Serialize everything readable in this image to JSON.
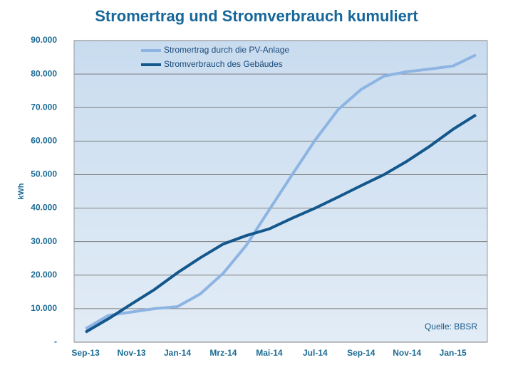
{
  "chart_data": {
    "type": "line",
    "title": "Stromertrag und Stromverbrauch kumuliert",
    "y_label": "kWh",
    "annotation": "Quelle: BBSR",
    "categories": [
      "Sep-13",
      null,
      "Nov-13",
      null,
      "Jan-14",
      null,
      "Mrz-14",
      null,
      "Mai-14",
      null,
      "Jul-14",
      null,
      "Sep-14",
      null,
      "Nov-14",
      null,
      "Jan-15",
      null
    ],
    "series": [
      {
        "name": "Stromertrag durch die PV-Anlage",
        "color": "#8db4e2",
        "values": [
          4000,
          8000,
          9000,
          10000,
          10600,
          14400,
          20600,
          28900,
          39500,
          50000,
          60300,
          69400,
          75400,
          79400,
          80700,
          81500,
          82400,
          85700
        ]
      },
      {
        "name": "Stromverbrauch des Gebäudes",
        "color": "#13578c",
        "values": [
          3000,
          7000,
          11400,
          15700,
          20700,
          25200,
          29300,
          31800,
          33800,
          37000,
          40000,
          43300,
          46700,
          50000,
          54000,
          58500,
          63500,
          67800
        ]
      }
    ],
    "ylim": [
      0,
      90000
    ],
    "yticks": [
      {
        "value": 0,
        "label": "-"
      },
      {
        "value": 10000,
        "label": "10.000"
      },
      {
        "value": 20000,
        "label": "20.000"
      },
      {
        "value": 30000,
        "label": "30.000"
      },
      {
        "value": 40000,
        "label": "40.000"
      },
      {
        "value": 50000,
        "label": "50.000"
      },
      {
        "value": 60000,
        "label": "60.000"
      },
      {
        "value": 70000,
        "label": "70.000"
      },
      {
        "value": 80000,
        "label": "80.000"
      },
      {
        "value": 90000,
        "label": "90.000"
      }
    ],
    "grid": true,
    "legend": "top-left"
  }
}
